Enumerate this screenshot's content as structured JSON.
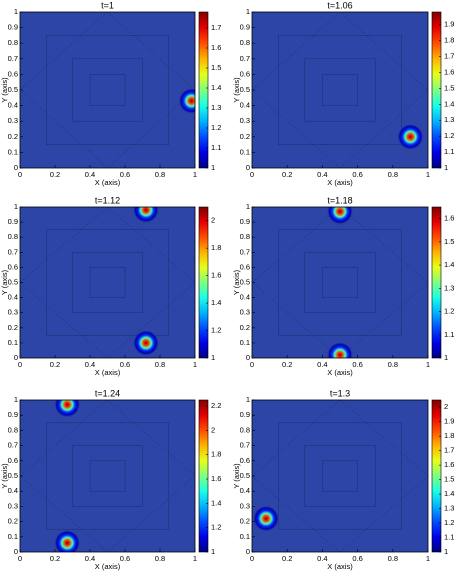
{
  "chart_data": [
    {
      "type": "heatmap",
      "title": "t=1",
      "xlabel": "X (axis)",
      "ylabel": "Y (axis)",
      "xlim": [
        0,
        1
      ],
      "ylim": [
        0,
        1
      ],
      "xticks": [
        0,
        0.2,
        0.4,
        0.6,
        0.8,
        1
      ],
      "yticks": [
        0,
        0.1,
        0.2,
        0.3,
        0.4,
        0.5,
        0.6,
        0.7,
        0.8,
        0.9,
        1
      ],
      "background_color": "#2c45a6",
      "colormap": "jet",
      "clim": [
        1,
        1.78
      ],
      "cticks": [
        1,
        1.1,
        1.2,
        1.3,
        1.4,
        1.5,
        1.6,
        1.7
      ],
      "peaks": {
        "x": [
          0.98
        ],
        "y": [
          0.43
        ]
      }
    },
    {
      "type": "heatmap",
      "title": "t=1.06",
      "xlabel": "X (axis)",
      "ylabel": "Y (axis)",
      "xlim": [
        0,
        1
      ],
      "ylim": [
        0,
        1
      ],
      "xticks": [
        0,
        0.2,
        0.4,
        0.6,
        0.8,
        1
      ],
      "yticks": [
        0,
        0.1,
        0.2,
        0.3,
        0.4,
        0.5,
        0.6,
        0.7,
        0.8,
        0.9,
        1
      ],
      "background_color": "#2c45a6",
      "colormap": "jet",
      "clim": [
        1,
        1.98
      ],
      "cticks": [
        1,
        1.1,
        1.2,
        1.3,
        1.4,
        1.5,
        1.6,
        1.7,
        1.8,
        1.9
      ],
      "peaks": {
        "x": [
          0.9
        ],
        "y": [
          0.2
        ]
      }
    },
    {
      "type": "heatmap",
      "title": "t=1.12",
      "xlabel": "X (axis)",
      "ylabel": "Y (axis)",
      "xlim": [
        0,
        1
      ],
      "ylim": [
        0,
        1
      ],
      "xticks": [
        0,
        0.2,
        0.4,
        0.6,
        0.8,
        1
      ],
      "yticks": [
        0,
        0.1,
        0.2,
        0.3,
        0.4,
        0.5,
        0.6,
        0.7,
        0.8,
        0.9,
        1
      ],
      "background_color": "#2c45a6",
      "colormap": "jet",
      "clim": [
        1,
        2.1
      ],
      "cticks": [
        1,
        1.2,
        1.4,
        1.6,
        1.8,
        2
      ],
      "peaks": {
        "x": [
          0.72,
          0.72
        ],
        "y": [
          0.1,
          0.98
        ]
      }
    },
    {
      "type": "heatmap",
      "title": "t=1.18",
      "xlabel": "X (axis)",
      "ylabel": "Y (axis)",
      "xlim": [
        0,
        1
      ],
      "ylim": [
        0,
        1
      ],
      "xticks": [
        0,
        0.2,
        0.4,
        0.6,
        0.8,
        1
      ],
      "yticks": [
        0,
        0.1,
        0.2,
        0.3,
        0.4,
        0.5,
        0.6,
        0.7,
        0.8,
        0.9,
        1
      ],
      "background_color": "#2c45a6",
      "colormap": "jet",
      "clim": [
        1,
        1.65
      ],
      "cticks": [
        1,
        1.1,
        1.2,
        1.3,
        1.4,
        1.5,
        1.6
      ],
      "peaks": {
        "x": [
          0.5,
          0.5
        ],
        "y": [
          0.02,
          0.97
        ]
      }
    },
    {
      "type": "heatmap",
      "title": "t=1.24",
      "xlabel": "X (axis)",
      "ylabel": "Y (axis)",
      "xlim": [
        0,
        1
      ],
      "ylim": [
        0,
        1
      ],
      "xticks": [
        0,
        0.2,
        0.4,
        0.6,
        0.8,
        1
      ],
      "yticks": [
        0,
        0.1,
        0.2,
        0.3,
        0.4,
        0.5,
        0.6,
        0.7,
        0.8,
        0.9,
        1
      ],
      "background_color": "#2c45a6",
      "colormap": "jet",
      "clim": [
        1,
        2.25
      ],
      "cticks": [
        1,
        1.2,
        1.4,
        1.6,
        1.8,
        2,
        2.2
      ],
      "peaks": {
        "x": [
          0.27,
          0.27
        ],
        "y": [
          0.06,
          0.97
        ]
      }
    },
    {
      "type": "heatmap",
      "title": "t=1.3",
      "xlabel": "X (axis)",
      "ylabel": "Y (axis)",
      "xlim": [
        0,
        1
      ],
      "ylim": [
        0,
        1
      ],
      "xticks": [
        0,
        0.2,
        0.4,
        0.6,
        0.8,
        1
      ],
      "yticks": [
        0,
        0.1,
        0.2,
        0.3,
        0.4,
        0.5,
        0.6,
        0.7,
        0.8,
        0.9,
        1
      ],
      "background_color": "#2c45a6",
      "colormap": "jet",
      "clim": [
        1,
        2.05
      ],
      "cticks": [
        1,
        1.1,
        1.2,
        1.3,
        1.4,
        1.5,
        1.6,
        1.7,
        1.8,
        1.9,
        2
      ],
      "peaks": {
        "x": [
          0.08
        ],
        "y": [
          0.22
        ]
      }
    }
  ]
}
